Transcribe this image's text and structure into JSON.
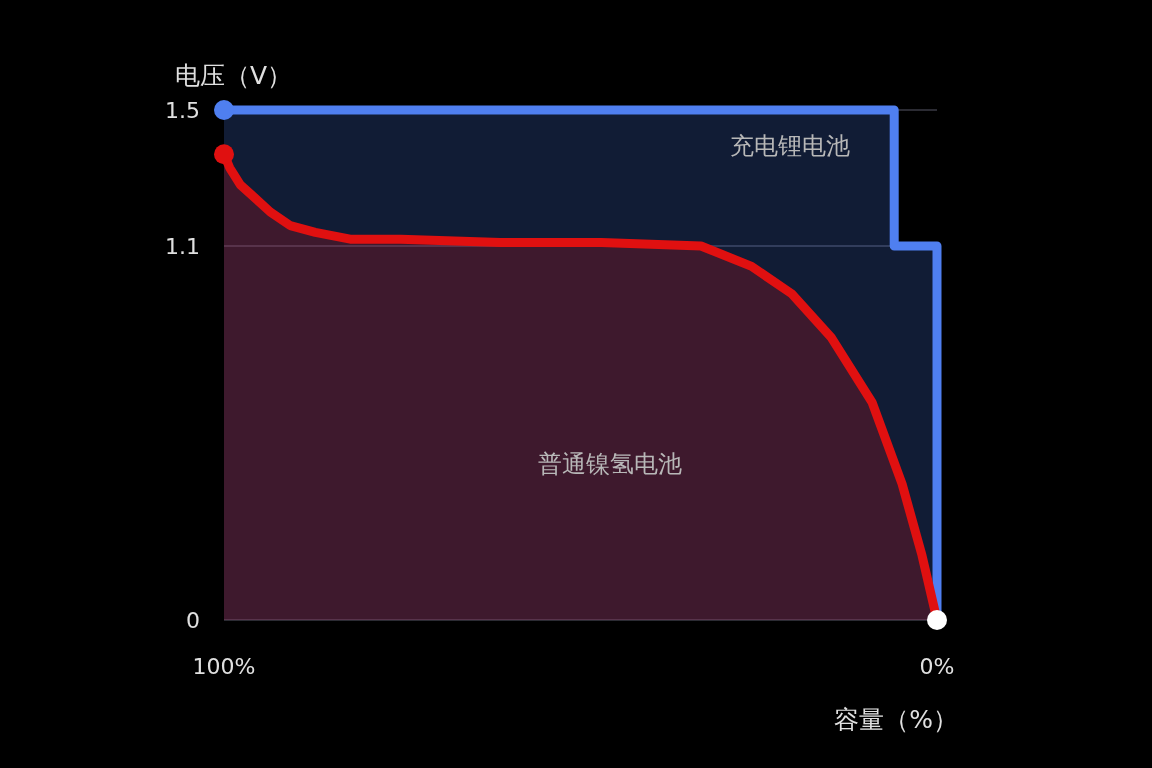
{
  "chart_data": {
    "type": "area",
    "xlabel": "容量（%）",
    "ylabel": "电压（V）",
    "xlim": [
      100,
      0
    ],
    "xticks": [
      {
        "value": 100,
        "label": "100%"
      },
      {
        "value": 0,
        "label": "0%"
      }
    ],
    "ylim": [
      0,
      1.5
    ],
    "yticks": [
      0,
      1.1,
      1.5
    ],
    "grid": "y",
    "series": [
      {
        "name": "充电锂电池",
        "color": "#4f7ff0",
        "x": [
          100,
          6,
          6,
          0,
          0
        ],
        "values": [
          1.5,
          1.5,
          1.1,
          1.1,
          0
        ]
      },
      {
        "name": "普通镍氢电池",
        "color": "#e01010",
        "x": [
          100,
          99.2,
          97.7,
          95.6,
          93.5,
          90.7,
          87.2,
          82.3,
          75.2,
          61.2,
          47.1,
          33.1,
          26.0,
          20.4,
          14.8,
          9.1,
          4.9,
          2.1,
          0
        ],
        "values": [
          1.37,
          1.33,
          1.28,
          1.24,
          1.2,
          1.16,
          1.14,
          1.12,
          1.12,
          1.11,
          1.11,
          1.1,
          1.04,
          0.96,
          0.83,
          0.64,
          0.4,
          0.19,
          0
        ]
      }
    ]
  }
}
